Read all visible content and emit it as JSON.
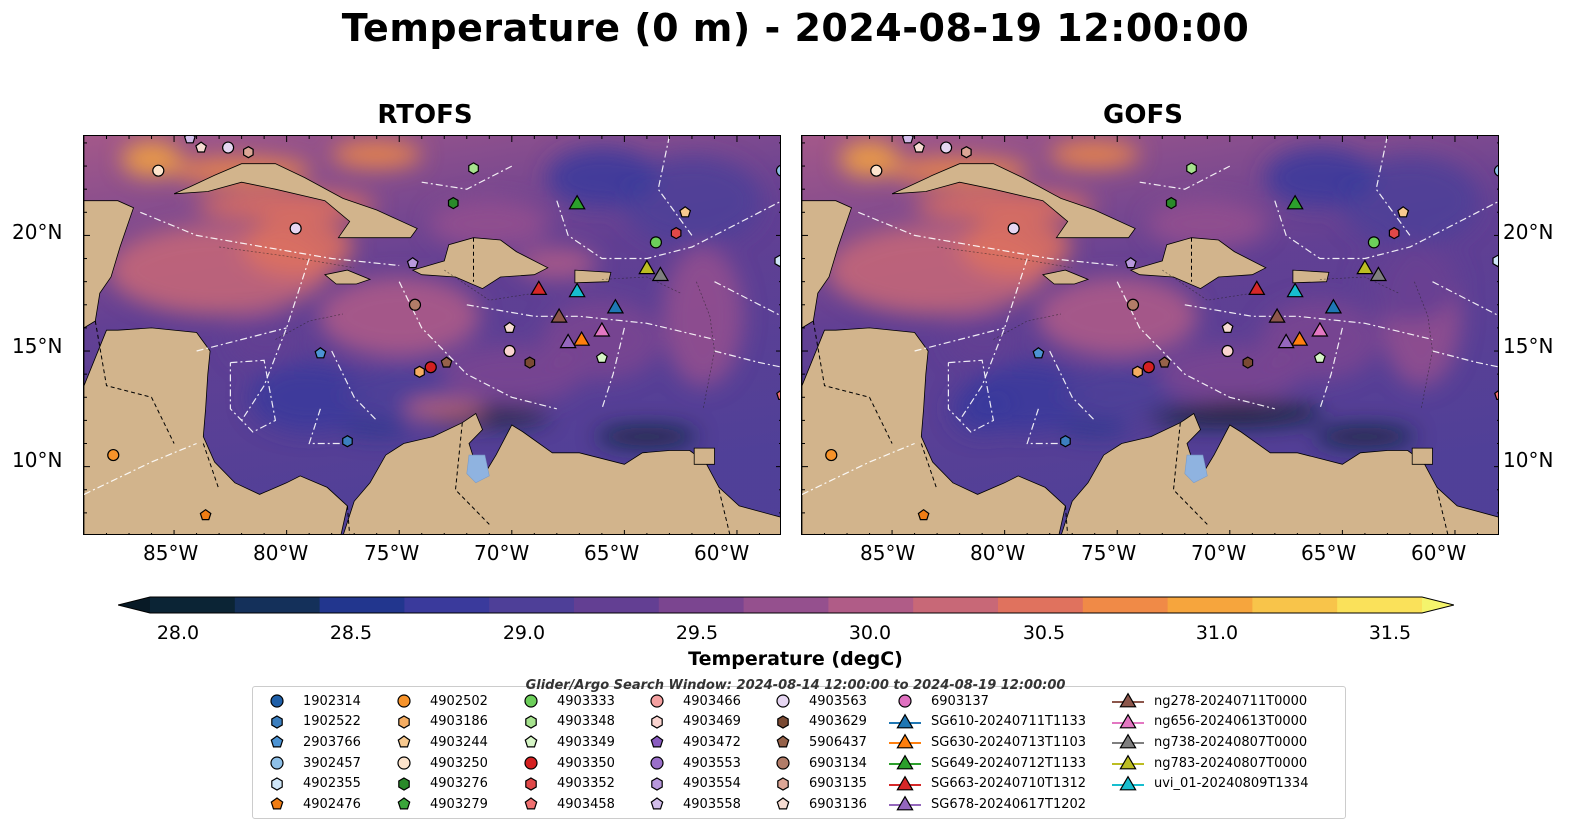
{
  "title": "Temperature (0 m) - 2024-08-19 12:00:00",
  "panels": [
    {
      "title": "RTOFS"
    },
    {
      "title": "GOFS"
    }
  ],
  "lat_ticks": [
    "20°N",
    "15°N",
    "10°N"
  ],
  "lon_ticks": [
    "85°W",
    "80°W",
    "75°W",
    "70°W",
    "65°W",
    "60°W"
  ],
  "colorbar": {
    "label": "Temperature (degC)",
    "ticks": [
      "28.0",
      "28.5",
      "29.0",
      "29.5",
      "30.0",
      "30.5",
      "31.0",
      "31.5"
    ],
    "colors": [
      "#0b2435",
      "#14305a",
      "#22368e",
      "#3a3a9c",
      "#4e3f98",
      "#633f93",
      "#7b4590",
      "#95508e",
      "#b05c87",
      "#c86877",
      "#e0725e",
      "#f08a47",
      "#f6a53d",
      "#f8c44a",
      "#fae15a"
    ],
    "under_color": "#081a26",
    "over_color": "#f4f46c"
  },
  "search_window": "Glider/Argo Search Window: 2024-08-14 12:00:00 to 2024-08-19 12:00:00",
  "colors": {
    "land": "#d2b48c",
    "lake": "#8fb3e0",
    "ocean_base": "#5a4296"
  },
  "legend": {
    "columns": [
      [
        {
          "label": "1902314",
          "marker": "circle",
          "color": "#1f5fa8"
        },
        {
          "label": "1902522",
          "marker": "hexagon",
          "color": "#3c7fbf"
        },
        {
          "label": "2903766",
          "marker": "pentagon",
          "color": "#4d94d4"
        },
        {
          "label": "3902457",
          "marker": "circle",
          "color": "#8ec0e8"
        },
        {
          "label": "4902355",
          "marker": "hexagon",
          "color": "#cfe6f8"
        },
        {
          "label": "4902476",
          "marker": "pentagon",
          "color": "#f07d14"
        }
      ],
      [
        {
          "label": "4902502",
          "marker": "circle",
          "color": "#f7932a"
        },
        {
          "label": "4903186",
          "marker": "hexagon",
          "color": "#f5ad62"
        },
        {
          "label": "4903244",
          "marker": "pentagon",
          "color": "#f8c98f"
        },
        {
          "label": "4903250",
          "marker": "circle",
          "color": "#fde4cc"
        },
        {
          "label": "4903276",
          "marker": "hexagon",
          "color": "#2a8a2a"
        },
        {
          "label": "4903279",
          "marker": "pentagon",
          "color": "#3aa63a"
        }
      ],
      [
        {
          "label": "4903333",
          "marker": "circle",
          "color": "#6cce5a"
        },
        {
          "label": "4903348",
          "marker": "hexagon",
          "color": "#a6e28e"
        },
        {
          "label": "4903349",
          "marker": "pentagon",
          "color": "#d6f5c6"
        },
        {
          "label": "4903350",
          "marker": "circle",
          "color": "#d42020"
        },
        {
          "label": "4903352",
          "marker": "hexagon",
          "color": "#e04848"
        },
        {
          "label": "4903458",
          "marker": "pentagon",
          "color": "#f07070"
        }
      ],
      [
        {
          "label": "4903466",
          "marker": "circle",
          "color": "#f4a0a0"
        },
        {
          "label": "4903469",
          "marker": "hexagon",
          "color": "#fad4d0"
        },
        {
          "label": "4903472",
          "marker": "pentagon",
          "color": "#8a5cc0"
        },
        {
          "label": "4903553",
          "marker": "circle",
          "color": "#9a6fc9"
        },
        {
          "label": "4903554",
          "marker": "hexagon",
          "color": "#b898dc"
        },
        {
          "label": "4903558",
          "marker": "pentagon",
          "color": "#d2bdea"
        }
      ],
      [
        {
          "label": "4903563",
          "marker": "circle",
          "color": "#e6d6f2"
        },
        {
          "label": "4903629",
          "marker": "hexagon",
          "color": "#7a4a33"
        },
        {
          "label": "5906437",
          "marker": "pentagon",
          "color": "#96624a"
        },
        {
          "label": "6903134",
          "marker": "circle",
          "color": "#b27c68"
        },
        {
          "label": "6903135",
          "marker": "hexagon",
          "color": "#dca696"
        },
        {
          "label": "6903136",
          "marker": "pentagon",
          "color": "#f6dcd2"
        }
      ],
      [
        {
          "label": "6903137",
          "marker": "circle",
          "color": "#e070c0"
        },
        {
          "label": "SG610-20240711T1133",
          "marker": "triangle-line",
          "color": "#1f77b4"
        },
        {
          "label": "SG630-20240713T1103",
          "marker": "triangle-line",
          "color": "#ff7f0e"
        },
        {
          "label": "SG649-20240712T1133",
          "marker": "triangle-line",
          "color": "#2ca02c"
        },
        {
          "label": "SG663-20240710T1312",
          "marker": "triangle-line",
          "color": "#d62728"
        },
        {
          "label": "SG678-20240617T1202",
          "marker": "triangle-line",
          "color": "#9467bd"
        }
      ],
      [
        {
          "label": "ng278-20240711T0000",
          "marker": "triangle-line",
          "color": "#8c564b"
        },
        {
          "label": "ng656-20240613T0000",
          "marker": "triangle-line",
          "color": "#e377c2"
        },
        {
          "label": "ng738-20240807T0000",
          "marker": "triangle-line",
          "color": "#7f7f7f"
        },
        {
          "label": "ng783-20240807T0000",
          "marker": "triangle-line",
          "color": "#bcbd22"
        },
        {
          "label": "uvi_01-20240809T1334",
          "marker": "triangle-line",
          "color": "#17becf"
        }
      ]
    ]
  },
  "map_markers": [
    {
      "id": "3902457",
      "marker": "circle",
      "color": "#8ec0e8",
      "lon": -58.0,
      "lat": 22.8
    },
    {
      "id": "4903250",
      "marker": "circle",
      "color": "#fde4cc",
      "lon": -85.7,
      "lat": 22.8
    },
    {
      "id": "4903558",
      "marker": "pentagon",
      "color": "#d2bdea",
      "lon": -84.3,
      "lat": 24.2
    },
    {
      "id": "6903136",
      "marker": "pentagon",
      "color": "#f6dcd2",
      "lon": -83.8,
      "lat": 23.8
    },
    {
      "id": "4903563",
      "marker": "circle",
      "color": "#e6d6f2",
      "lon": -82.6,
      "lat": 23.8
    },
    {
      "id": "6903135",
      "marker": "hexagon",
      "color": "#dca696",
      "lon": -81.7,
      "lat": 23.6
    },
    {
      "id": "4903348",
      "marker": "hexagon",
      "color": "#a6e28e",
      "lon": -71.7,
      "lat": 22.9
    },
    {
      "id": "4903276",
      "marker": "hexagon",
      "color": "#2a8a2a",
      "lon": -72.6,
      "lat": 21.4
    },
    {
      "id": "4903554",
      "marker": "circle",
      "color": "#e6d6f2",
      "lon": -79.6,
      "lat": 20.3
    },
    {
      "id": "4903472",
      "marker": "pentagon",
      "color": "#b898dc",
      "lon": -74.4,
      "lat": 18.8
    },
    {
      "id": "4903244",
      "marker": "pentagon",
      "color": "#f8c98f",
      "lon": -62.3,
      "lat": 21.0
    },
    {
      "id": "4903352",
      "marker": "hexagon",
      "color": "#e04848",
      "lon": -62.7,
      "lat": 20.1
    },
    {
      "id": "4903333",
      "marker": "circle",
      "color": "#6cce5a",
      "lon": -63.6,
      "lat": 19.7
    },
    {
      "id": "4902355",
      "marker": "hexagon",
      "color": "#cfe6f8",
      "lon": -58.1,
      "lat": 18.9
    },
    {
      "id": "6903134",
      "marker": "circle",
      "color": "#b27c68",
      "lon": -74.3,
      "lat": 17.0
    },
    {
      "id": "2903766",
      "marker": "pentagon",
      "color": "#4d94d4",
      "lon": -78.5,
      "lat": 14.9
    },
    {
      "id": "6903136b",
      "marker": "pentagon",
      "color": "#f6dcd2",
      "lon": -70.1,
      "lat": 16.0
    },
    {
      "id": "4903469",
      "marker": "circle",
      "color": "#fad4d0",
      "lon": -70.1,
      "lat": 15.0
    },
    {
      "id": "4903629",
      "marker": "hexagon",
      "color": "#7a4a33",
      "lon": -69.2,
      "lat": 14.5
    },
    {
      "id": "5906437",
      "marker": "pentagon",
      "color": "#96624a",
      "lon": -72.9,
      "lat": 14.5
    },
    {
      "id": "4903350",
      "marker": "circle",
      "color": "#d42020",
      "lon": -73.6,
      "lat": 14.3
    },
    {
      "id": "4903186",
      "marker": "hexagon",
      "color": "#f5ad62",
      "lon": -74.1,
      "lat": 14.1
    },
    {
      "id": "4903349",
      "marker": "pentagon",
      "color": "#d6f5c6",
      "lon": -66.0,
      "lat": 14.7
    },
    {
      "id": "1902522",
      "marker": "hexagon",
      "color": "#3c7fbf",
      "lon": -77.3,
      "lat": 11.1
    },
    {
      "id": "4902502",
      "marker": "circle",
      "color": "#f7932a",
      "lon": -87.7,
      "lat": 10.5
    },
    {
      "id": "4902476",
      "marker": "pentagon",
      "color": "#f07d14",
      "lon": -83.6,
      "lat": 7.9
    },
    {
      "id": "4903458",
      "marker": "pentagon",
      "color": "#f07070",
      "lon": -58.0,
      "lat": 13.1
    },
    {
      "id": "SG649-20240712T1133",
      "marker": "triangle",
      "color": "#2ca02c",
      "lon": -67.1,
      "lat": 21.4
    },
    {
      "id": "ng783-20240807T0000",
      "marker": "triangle",
      "color": "#bcbd22",
      "lon": -64.0,
      "lat": 18.6
    },
    {
      "id": "ng738-20240807T0000",
      "marker": "triangle",
      "color": "#7f7f7f",
      "lon": -63.4,
      "lat": 18.3
    },
    {
      "id": "SG663-20240710T1312",
      "marker": "triangle",
      "color": "#d62728",
      "lon": -68.8,
      "lat": 17.7
    },
    {
      "id": "uvi_01-20240809T1334",
      "marker": "triangle",
      "color": "#17becf",
      "lon": -67.1,
      "lat": 17.6
    },
    {
      "id": "SG610-20240711T1133",
      "marker": "triangle",
      "color": "#1f77b4",
      "lon": -65.4,
      "lat": 16.9
    },
    {
      "id": "ng278-20240711T0000",
      "marker": "triangle",
      "color": "#8c564b",
      "lon": -67.9,
      "lat": 16.5
    },
    {
      "id": "ng656-20240613T0000",
      "marker": "triangle",
      "color": "#e377c2",
      "lon": -66.0,
      "lat": 15.9
    },
    {
      "id": "SG630-20240713T1103",
      "marker": "triangle",
      "color": "#ff7f0e",
      "lon": -66.9,
      "lat": 15.5
    },
    {
      "id": "SG678-20240617T1202",
      "marker": "triangle",
      "color": "#9467bd",
      "lon": -67.5,
      "lat": 15.4
    }
  ]
}
